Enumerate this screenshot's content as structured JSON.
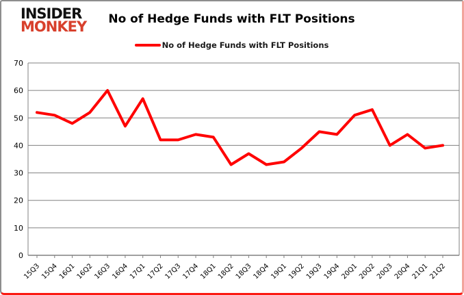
{
  "logo": {
    "line1": "INSIDER",
    "line2": "MONKEY",
    "monkey_color": "#d8402c"
  },
  "header": {
    "title": "No of Hedge Funds with FLT Positions"
  },
  "legend": {
    "label": "No of Hedge Funds with FLT Positions",
    "line_color": "#ff0000"
  },
  "colors": {
    "series_red": "#ff0000",
    "gridline_gray": "#808080",
    "axis_gray": "#808080",
    "label_black": "#000000"
  },
  "chart_data": {
    "type": "line",
    "title": "No of Hedge Funds with FLT Positions",
    "categories": [
      "15Q3",
      "15Q4",
      "16Q1",
      "16Q2",
      "16Q3",
      "16Q4",
      "17Q1",
      "17Q2",
      "17Q3",
      "17Q4",
      "18Q1",
      "18Q2",
      "18Q3",
      "18Q4",
      "19Q1",
      "19Q2",
      "19Q3",
      "19Q4",
      "20Q1",
      "20Q2",
      "20Q3",
      "20Q4",
      "21Q1",
      "21Q2"
    ],
    "series": [
      {
        "name": "No of Hedge Funds with FLT Positions",
        "color": "#ff0000",
        "values": [
          52,
          51,
          48,
          52,
          60,
          47,
          57,
          42,
          42,
          44,
          43,
          33,
          37,
          33,
          34,
          39,
          45,
          44,
          51,
          53,
          40,
          44,
          39,
          40
        ]
      }
    ],
    "xlabel": "",
    "ylabel": "",
    "ylim": [
      0,
      70
    ],
    "ytick_step": 10,
    "grid": true,
    "legend_position": "top-center"
  }
}
